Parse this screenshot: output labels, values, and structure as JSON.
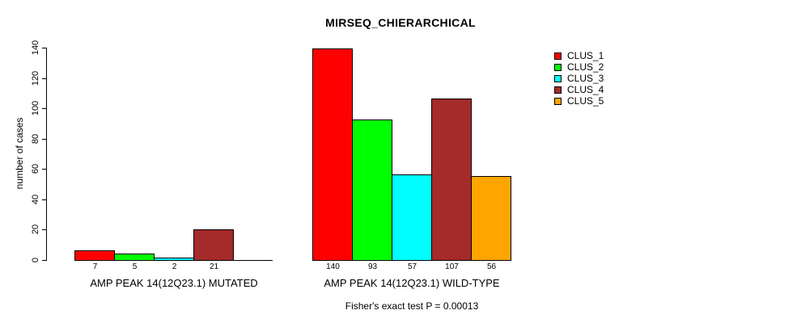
{
  "chart_data": {
    "type": "bar",
    "title": "MIRSEQ_CHIERARCHICAL",
    "ylabel": "number of cases",
    "xlabel": "",
    "ylim": [
      0,
      140
    ],
    "yticks": [
      0,
      20,
      40,
      60,
      80,
      100,
      120,
      140
    ],
    "grid": false,
    "legend_position": "top-right",
    "categories": [
      "CLUS_1",
      "CLUS_2",
      "CLUS_3",
      "CLUS_4",
      "CLUS_5"
    ],
    "groups": [
      {
        "label": "AMP PEAK 14(12Q23.1) MUTATED",
        "values": [
          7,
          5,
          2,
          21,
          0
        ],
        "bar_labels": [
          "7",
          "5",
          "2",
          "21",
          ""
        ]
      },
      {
        "label": "AMP PEAK 14(12Q23.1) WILD-TYPE",
        "values": [
          140,
          93,
          57,
          107,
          56
        ],
        "bar_labels": [
          "140",
          "93",
          "57",
          "107",
          "56"
        ]
      }
    ],
    "legend": [
      {
        "label": "CLUS_1",
        "color": "#FF0000"
      },
      {
        "label": "CLUS_2",
        "color": "#00FF00"
      },
      {
        "label": "CLUS_3",
        "color": "#00FFFF"
      },
      {
        "label": "CLUS_4",
        "color": "#A52A2A"
      },
      {
        "label": "CLUS_5",
        "color": "#FFA500"
      }
    ],
    "annotation": "Fisher's exact test P = 0.00013",
    "axis_color": "#000000",
    "background_color": "#FFFFFF"
  }
}
